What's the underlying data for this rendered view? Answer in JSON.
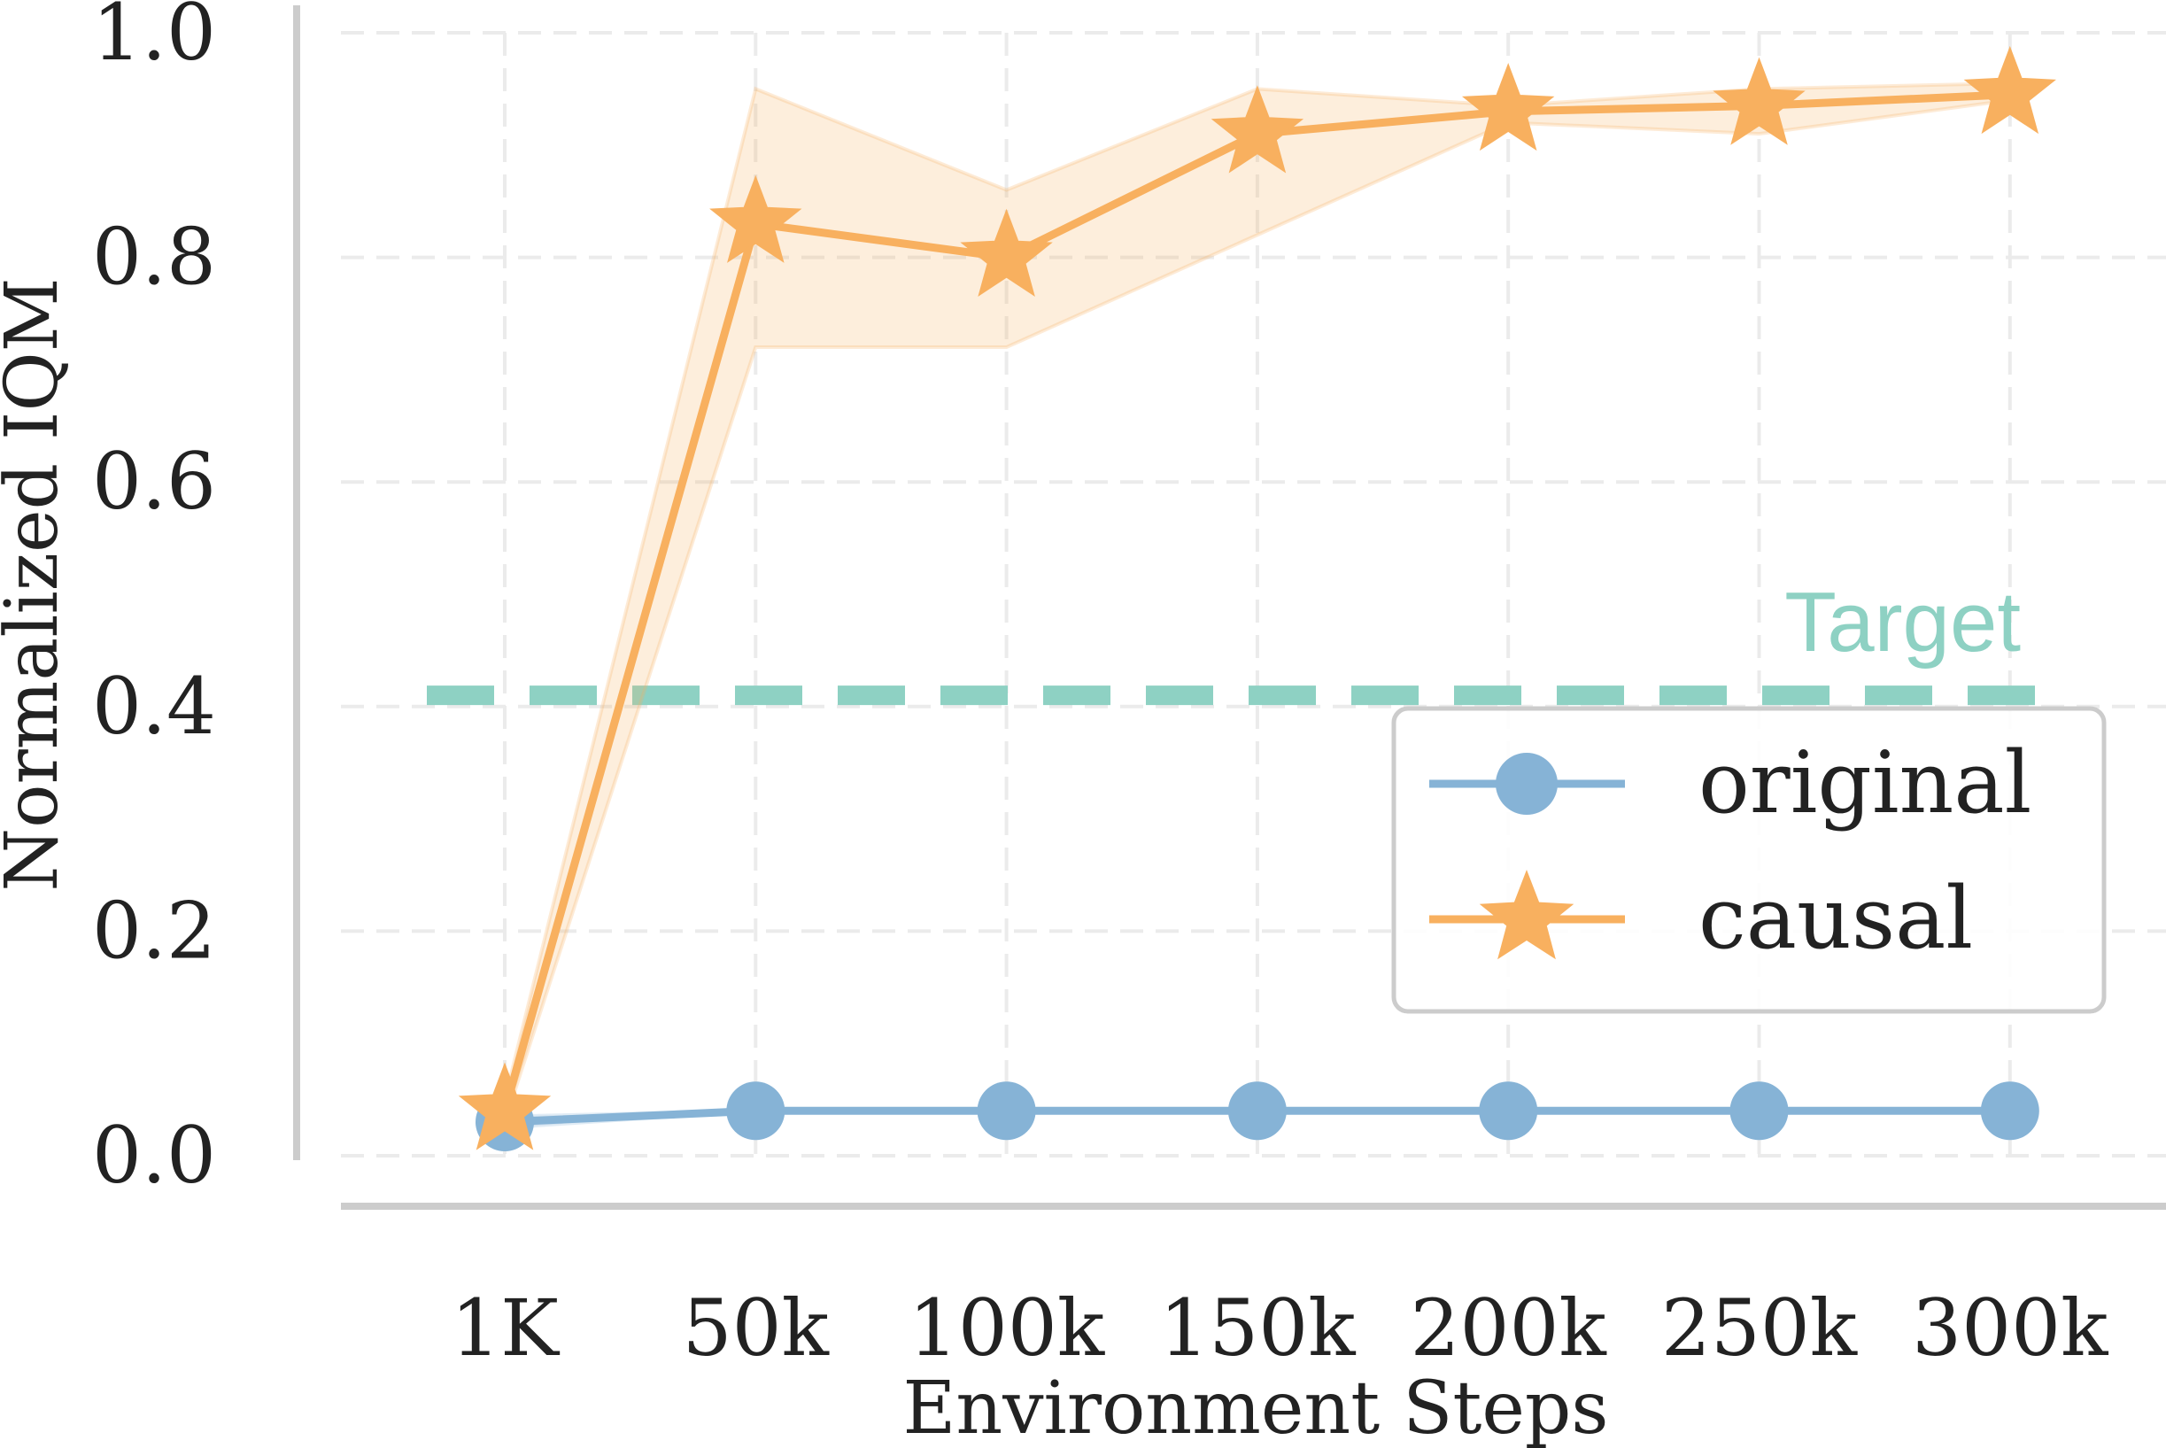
{
  "chart_data": {
    "type": "line",
    "x": [
      "1K",
      "50k",
      "100k",
      "150k",
      "200k",
      "250k",
      "300k"
    ],
    "xlabel": "Environment Steps",
    "ylabel": "Normalized IQM",
    "ylim": [
      0.0,
      1.0
    ],
    "yticks": [
      "0.0",
      "0.2",
      "0.4",
      "0.6",
      "0.8",
      "1.0"
    ],
    "grid": true,
    "legend_position": "center-right",
    "series": [
      {
        "name": "original",
        "marker": "circle",
        "color": "#86b3d6",
        "values": [
          0.03,
          0.04,
          0.04,
          0.04,
          0.04,
          0.04,
          0.04
        ],
        "lower": [
          0.025,
          0.04,
          0.04,
          0.04,
          0.04,
          0.04,
          0.04
        ],
        "upper": [
          0.035,
          0.04,
          0.04,
          0.04,
          0.04,
          0.04,
          0.04
        ]
      },
      {
        "name": "causal",
        "marker": "star",
        "color": "#f8b05f",
        "values": [
          0.04,
          0.83,
          0.8,
          0.91,
          0.93,
          0.935,
          0.945
        ],
        "lower": [
          0.03,
          0.72,
          0.72,
          0.82,
          0.92,
          0.91,
          0.94
        ],
        "upper": [
          0.05,
          0.95,
          0.86,
          0.95,
          0.935,
          0.95,
          0.955
        ]
      }
    ],
    "reference_line": {
      "label": "Target",
      "value": 0.41,
      "color": "#8ed1c3",
      "style": "dashed"
    }
  }
}
